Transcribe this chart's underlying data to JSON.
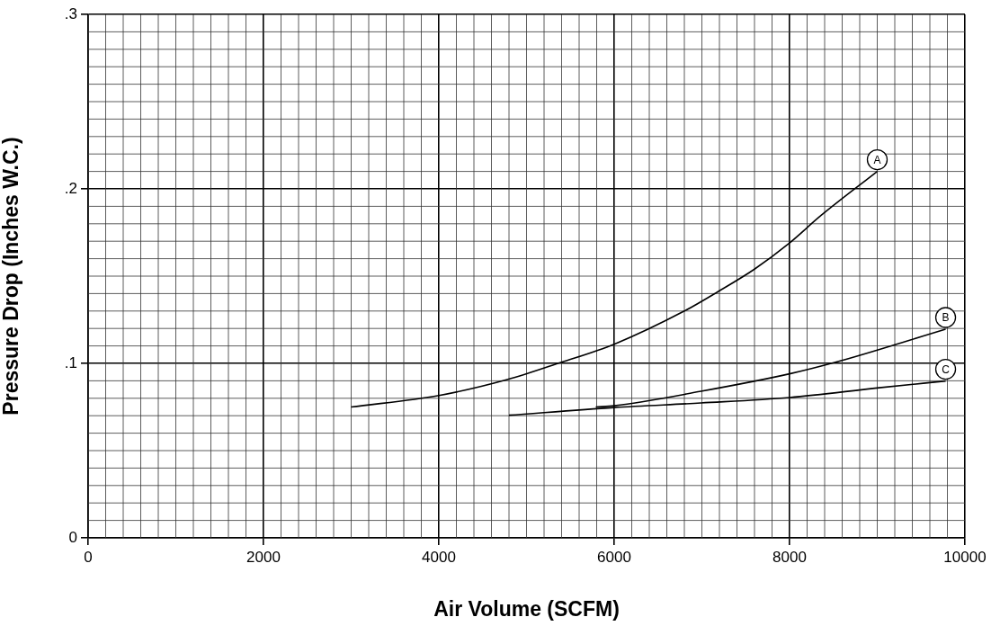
{
  "chart_data": {
    "type": "line",
    "xlabel": "Air Volume (SCFM)",
    "ylabel": "Pressure Drop (Inches W.C.)",
    "xlim": [
      0,
      10000
    ],
    "xticks": [
      0,
      2000,
      4000,
      6000,
      8000,
      10000
    ],
    "ylim": [
      0,
      0.3
    ],
    "yticks": [
      0,
      {
        "value": 0.1,
        "label": ".1"
      },
      {
        "value": 0.2,
        "label": ".2"
      },
      {
        "value": 0.3,
        "label": ".3"
      }
    ],
    "grid": true,
    "legend": false,
    "marker": "none",
    "line_style": "solid",
    "series": [
      {
        "name": "A",
        "color": "#000000",
        "x": [
          3000,
          4000,
          4780,
          5390,
          6000,
          6800,
          7180,
          7600,
          7990,
          8360,
          9000
        ],
        "values": [
          0.075,
          0.0816,
          0.0907,
          0.1005,
          0.111,
          0.13,
          0.141,
          0.154,
          0.1686,
          0.1848,
          0.21
        ]
      },
      {
        "name": "B",
        "color": "#000000",
        "x": [
          5790,
          6000,
          6990,
          8000,
          8550,
          9780
        ],
        "values": [
          0.075,
          0.0757,
          0.084,
          0.094,
          0.101,
          0.1196
        ]
      },
      {
        "name": "C",
        "color": "#000000",
        "x": [
          4800,
          6000,
          6990,
          8000,
          9020,
          9780
        ],
        "values": [
          0.0703,
          0.0747,
          0.0773,
          0.0804,
          0.086,
          0.0899
        ]
      }
    ]
  }
}
